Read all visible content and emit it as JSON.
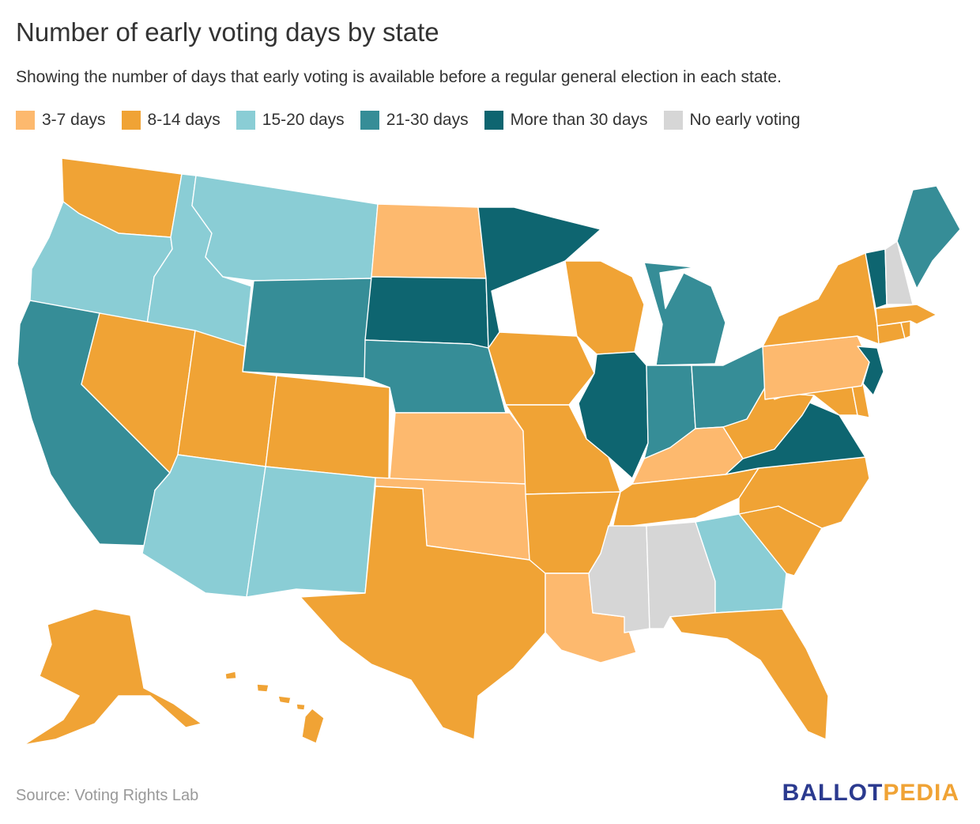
{
  "title": "Number of early voting days by state",
  "subtitle": "Showing the number of days that early voting is available before a regular general election in each state.",
  "legend": [
    {
      "key": "c3_7",
      "label": "3-7 days",
      "color": "#fdb96e"
    },
    {
      "key": "c8_14",
      "label": "8-14 days",
      "color": "#f0a335"
    },
    {
      "key": "c15_20",
      "label": "15-20 days",
      "color": "#8acdd5"
    },
    {
      "key": "c21_30",
      "label": "21-30 days",
      "color": "#368d97"
    },
    {
      "key": "c30p",
      "label": "More than 30 days",
      "color": "#0e6570"
    },
    {
      "key": "none",
      "label": "No early voting",
      "color": "#d6d6d6"
    }
  ],
  "states": [
    {
      "abbr": "WA",
      "category": "c8_14"
    },
    {
      "abbr": "OR",
      "category": "c15_20"
    },
    {
      "abbr": "CA",
      "category": "c21_30"
    },
    {
      "abbr": "ID",
      "category": "c15_20"
    },
    {
      "abbr": "NV",
      "category": "c8_14"
    },
    {
      "abbr": "MT",
      "category": "c15_20"
    },
    {
      "abbr": "WY",
      "category": "c21_30"
    },
    {
      "abbr": "UT",
      "category": "c8_14"
    },
    {
      "abbr": "AZ",
      "category": "c15_20"
    },
    {
      "abbr": "CO",
      "category": "c8_14"
    },
    {
      "abbr": "NM",
      "category": "c15_20"
    },
    {
      "abbr": "ND",
      "category": "c3_7"
    },
    {
      "abbr": "SD",
      "category": "c30p"
    },
    {
      "abbr": "NE",
      "category": "c21_30"
    },
    {
      "abbr": "KS",
      "category": "c3_7"
    },
    {
      "abbr": "OK",
      "category": "c3_7"
    },
    {
      "abbr": "TX",
      "category": "c8_14"
    },
    {
      "abbr": "MN",
      "category": "c30p"
    },
    {
      "abbr": "IA",
      "category": "c8_14"
    },
    {
      "abbr": "MO",
      "category": "c8_14"
    },
    {
      "abbr": "AR",
      "category": "c8_14"
    },
    {
      "abbr": "LA",
      "category": "c3_7"
    },
    {
      "abbr": "WI",
      "category": "c8_14"
    },
    {
      "abbr": "IL",
      "category": "c30p"
    },
    {
      "abbr": "MI",
      "category": "c21_30"
    },
    {
      "abbr": "IN",
      "category": "c21_30"
    },
    {
      "abbr": "OH",
      "category": "c21_30"
    },
    {
      "abbr": "KY",
      "category": "c3_7"
    },
    {
      "abbr": "TN",
      "category": "c8_14"
    },
    {
      "abbr": "MS",
      "category": "none"
    },
    {
      "abbr": "AL",
      "category": "none"
    },
    {
      "abbr": "GA",
      "category": "c15_20"
    },
    {
      "abbr": "FL",
      "category": "c8_14"
    },
    {
      "abbr": "SC",
      "category": "c8_14"
    },
    {
      "abbr": "NC",
      "category": "c8_14"
    },
    {
      "abbr": "VA",
      "category": "c30p"
    },
    {
      "abbr": "WV",
      "category": "c8_14"
    },
    {
      "abbr": "MD",
      "category": "c8_14"
    },
    {
      "abbr": "DE",
      "category": "c8_14"
    },
    {
      "abbr": "NJ",
      "category": "c30p"
    },
    {
      "abbr": "PA",
      "category": "c3_7"
    },
    {
      "abbr": "NY",
      "category": "c8_14"
    },
    {
      "abbr": "CT",
      "category": "c8_14"
    },
    {
      "abbr": "RI",
      "category": "c8_14"
    },
    {
      "abbr": "MA",
      "category": "c8_14"
    },
    {
      "abbr": "VT",
      "category": "c30p"
    },
    {
      "abbr": "NH",
      "category": "none"
    },
    {
      "abbr": "ME",
      "category": "c21_30"
    },
    {
      "abbr": "AK",
      "category": "c8_14"
    },
    {
      "abbr": "HI",
      "category": "c8_14"
    }
  ],
  "source": "Source: Voting Rights Lab",
  "logo": {
    "part1": "BALLOT",
    "part2": "PEDIA",
    "color1": "#2b3a8f",
    "color2": "#f0a335"
  }
}
